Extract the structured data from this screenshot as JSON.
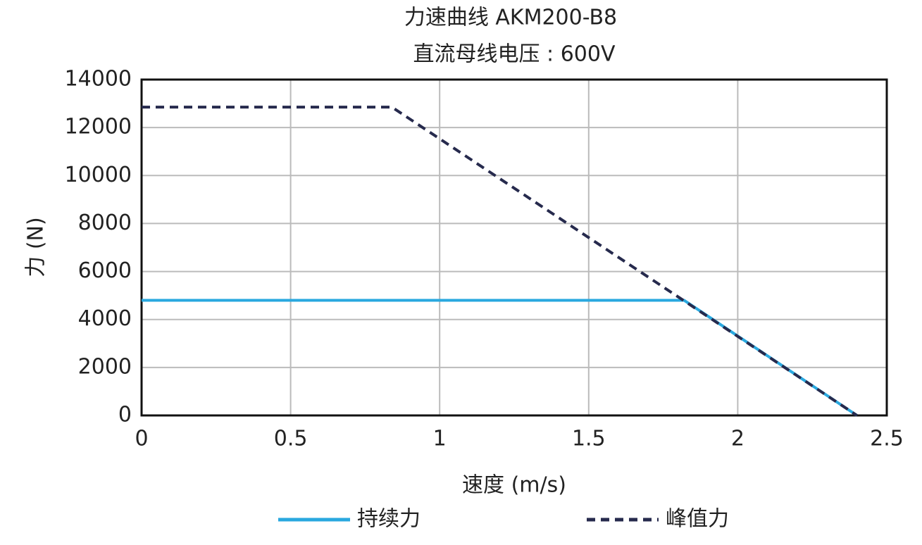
{
  "chart_data": {
    "type": "line",
    "title": "力速曲线 AKM200-B8",
    "subtitle": "直流母线电压 : 600V",
    "x_label": "速度 (m/s)",
    "y_label": "力 (N)",
    "xlim": [
      0,
      2.5
    ],
    "xticks": [
      0,
      0.5,
      1,
      1.5,
      2,
      2.5
    ],
    "ylim": [
      0,
      14000
    ],
    "yticks": [
      0,
      2000,
      4000,
      6000,
      8000,
      10000,
      12000,
      14000
    ],
    "grid": true,
    "series": [
      {
        "name": "持续力",
        "color": "#29a8df",
        "style": "solid",
        "x": [
          0,
          1.82,
          2.4
        ],
        "values": [
          4800,
          4800,
          0
        ]
      },
      {
        "name": "峰值力",
        "color": "#262a4d",
        "style": "dashed",
        "x": [
          0,
          0.84,
          2.4
        ],
        "values": [
          12850,
          12850,
          0
        ]
      }
    ]
  }
}
